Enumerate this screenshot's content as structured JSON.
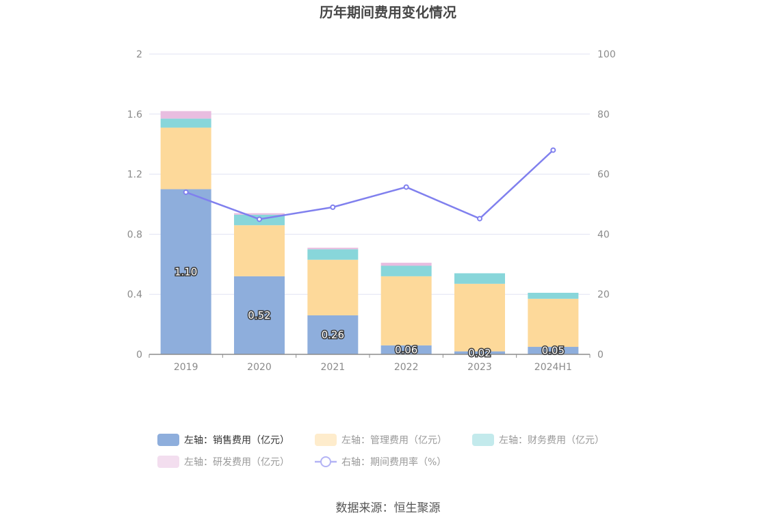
{
  "title": "历年期间费用变化情况",
  "source": "数据来源：恒生聚源",
  "chart_data": {
    "type": "bar",
    "stacked": true,
    "categories": [
      "2019",
      "2020",
      "2021",
      "2022",
      "2023",
      "2024H1"
    ],
    "series": [
      {
        "name": "左轴：销售费用（亿元）",
        "axis": "left",
        "color": "#8eaedc",
        "values": [
          1.1,
          0.52,
          0.26,
          0.06,
          0.02,
          0.05
        ],
        "labels": [
          "1.10",
          "0.52",
          "0.26",
          "0.06",
          "0.02",
          "0.05"
        ]
      },
      {
        "name": "左轴：管理费用（亿元）",
        "axis": "left",
        "color": "#fdd99a",
        "values": [
          0.41,
          0.34,
          0.37,
          0.46,
          0.45,
          0.32
        ]
      },
      {
        "name": "左轴：财务费用（亿元）",
        "axis": "left",
        "color": "#88d6da",
        "values": [
          0.06,
          0.07,
          0.07,
          0.07,
          0.07,
          0.04
        ]
      },
      {
        "name": "左轴：研发费用（亿元）",
        "axis": "left",
        "color": "#e8bde0",
        "values": [
          0.05,
          0.01,
          0.01,
          0.02,
          0.0,
          0.0
        ]
      },
      {
        "name": "右轴：期间费用率（%）",
        "axis": "right",
        "type": "line",
        "color": "#8080ee",
        "values": [
          54.0,
          45.0,
          49.0,
          55.7,
          45.2,
          68.0
        ]
      }
    ],
    "left_axis": {
      "min": 0,
      "max": 2,
      "ticks": [
        "0",
        "0.4",
        "0.8",
        "1.2",
        "1.6",
        "2"
      ]
    },
    "right_axis": {
      "min": 0,
      "max": 100,
      "ticks": [
        "0",
        "20",
        "40",
        "60",
        "80",
        "100"
      ]
    },
    "grid": true,
    "legend_position": "bottom"
  }
}
